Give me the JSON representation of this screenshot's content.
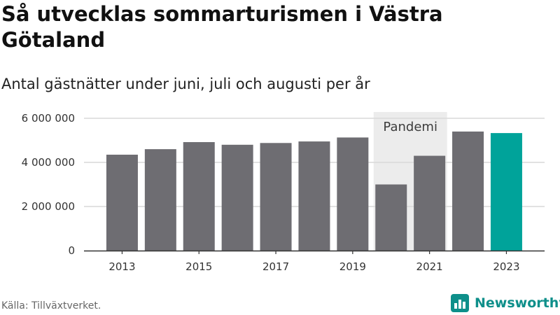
{
  "header": {
    "title": "Så utvecklas sommarturismen i Västra Götaland",
    "subtitle": "Antal gästnätter under juni, juli och augusti per år"
  },
  "footer": {
    "source": "Källa: Tillväxtverket.",
    "brand": "Newsworthy",
    "brand_icon": "newsworthy-logo-icon"
  },
  "colors": {
    "bar": "#6e6d72",
    "highlight": "#00a39a",
    "annotation_band": "#ececec",
    "grid": "#d9d9d9",
    "brand": "#0e8f8a"
  },
  "chart_data": {
    "type": "bar",
    "categories": [
      "2013",
      "2014",
      "2015",
      "2016",
      "2017",
      "2018",
      "2019",
      "2020",
      "2021",
      "2022",
      "2023"
    ],
    "values": [
      4350000,
      4600000,
      4920000,
      4800000,
      4880000,
      4950000,
      5130000,
      3000000,
      4300000,
      5400000,
      5330000
    ],
    "highlight_category": "2023",
    "xticks": [
      "2013",
      "2015",
      "2017",
      "2019",
      "2021",
      "2023"
    ],
    "yticks": [
      0,
      2000000,
      4000000,
      6000000
    ],
    "ytick_labels": [
      "0",
      "2 000 000",
      "4 000 000",
      "6 000 000"
    ],
    "ylim": [
      0,
      6000000
    ],
    "grid": true,
    "annotation": {
      "label": "Pandemi",
      "from": "2020",
      "to": "2021"
    },
    "xlabel": "",
    "ylabel": ""
  }
}
